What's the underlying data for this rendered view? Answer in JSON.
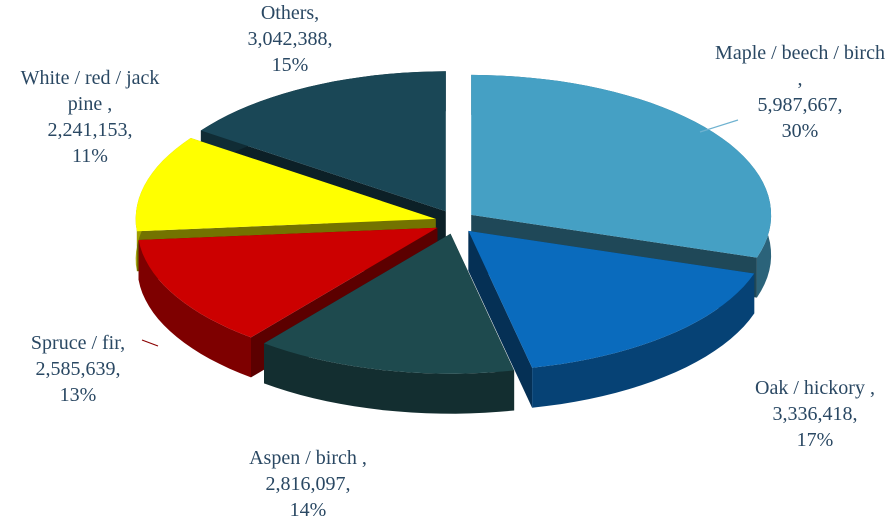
{
  "chart_data": {
    "type": "pie",
    "categories": [
      "Maple / beech / birch ,",
      "Oak / hickory ,",
      "Aspen / birch ,",
      "Spruce / fir,",
      "White / red / jack pine ,",
      "Others,"
    ],
    "values": [
      5987667,
      3336418,
      2816097,
      2585639,
      2241153,
      3042388
    ],
    "value_labels": [
      "5,987,667,",
      "3,336,418,",
      "2,816,097,",
      "2,585,639,",
      "2,241,153,",
      "3,042,388,"
    ],
    "percent_labels": [
      "30%",
      "17%",
      "14%",
      "13%",
      "11%",
      "15%"
    ],
    "colors": [
      "#45a0c4",
      "#0a6bbd",
      "#1e4a4e",
      "#cc0000",
      "#ffff00",
      "#1a4756"
    ]
  }
}
